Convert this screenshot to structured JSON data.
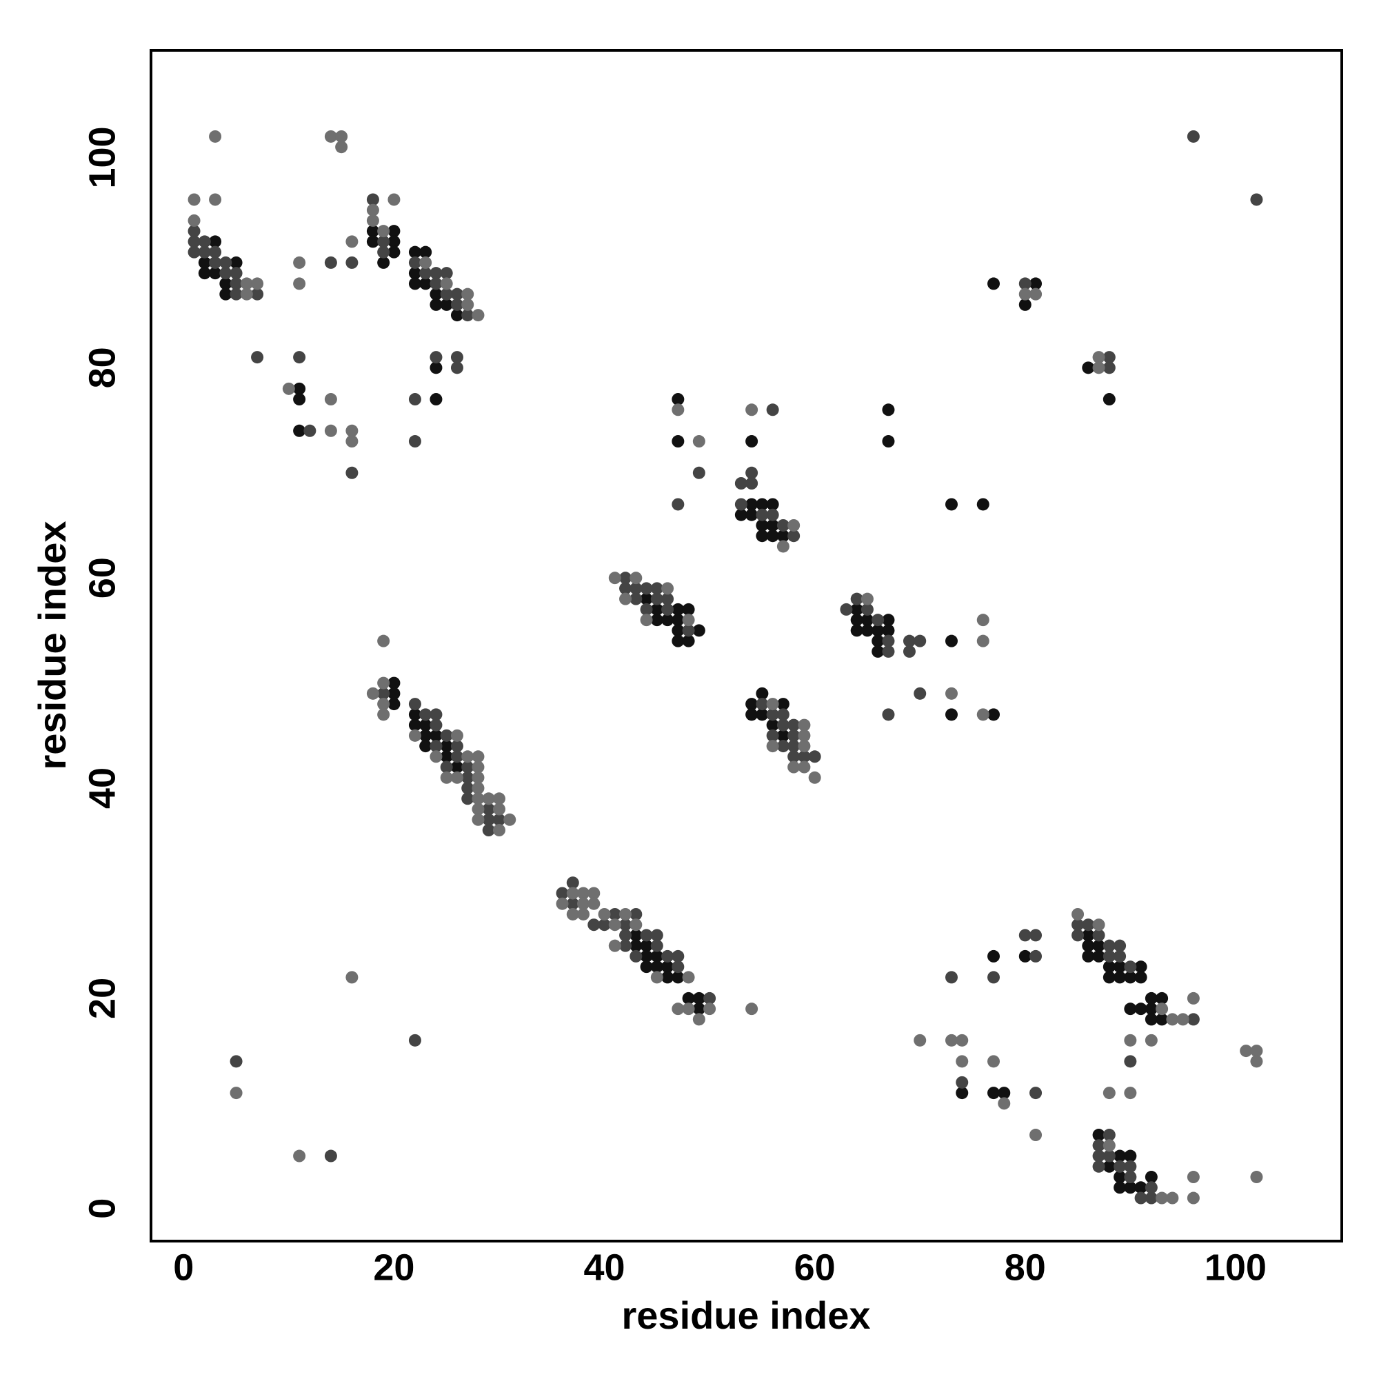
{
  "chart_data": {
    "type": "scatter",
    "xlabel": "residue index",
    "ylabel": "residue index",
    "xlim": [
      -3.1,
      110.1
    ],
    "ylim": [
      -3.1,
      110.2
    ],
    "xticks": [
      0,
      20,
      40,
      60,
      80,
      100
    ],
    "yticks": [
      0,
      20,
      40,
      60,
      80,
      100
    ],
    "grid": false,
    "series": [
      {
        "color": "#111111",
        "x": [
          3,
          2,
          2,
          3,
          5,
          4,
          4,
          18,
          20,
          18,
          20,
          20,
          19,
          22,
          23,
          22,
          22,
          23,
          24,
          24,
          25,
          26,
          24,
          11,
          11,
          11,
          24,
          44,
          45,
          47,
          48,
          45,
          46,
          47,
          47,
          49,
          47,
          48,
          47,
          47,
          54,
          54,
          55,
          56,
          53,
          54,
          55,
          56,
          55,
          56,
          57,
          67,
          67,
          73,
          76,
          64,
          64,
          65,
          67,
          64,
          65,
          66,
          67,
          66,
          66,
          73,
          73,
          77,
          55,
          54,
          57,
          54,
          55,
          56,
          57,
          20,
          20,
          20,
          22,
          22,
          23,
          23,
          24,
          23,
          25,
          25,
          26,
          43,
          43,
          44,
          44,
          45,
          44,
          45,
          46,
          46,
          47,
          48,
          49,
          49,
          77,
          81,
          80,
          86,
          88,
          86,
          86,
          87,
          86,
          87,
          88,
          89,
          91,
          88,
          89,
          90,
          91,
          92,
          93,
          90,
          91,
          92,
          92,
          93,
          80,
          77,
          74,
          77,
          78,
          87,
          89,
          90,
          88,
          89,
          92,
          89,
          90,
          91
        ],
        "values": [
          92,
          90,
          89,
          89,
          90,
          88,
          87,
          93,
          93,
          92,
          92,
          91,
          90,
          91,
          91,
          89,
          88,
          88,
          87,
          86,
          86,
          85,
          80,
          78,
          77,
          74,
          77,
          58,
          57,
          57,
          57,
          56,
          56,
          56,
          55,
          55,
          54,
          54,
          77,
          73,
          73,
          67,
          67,
          67,
          66,
          66,
          65,
          65,
          64,
          64,
          64,
          76,
          73,
          67,
          67,
          57,
          56,
          56,
          56,
          55,
          55,
          55,
          55,
          54,
          53,
          54,
          47,
          47,
          49,
          48,
          48,
          47,
          47,
          46,
          45,
          50,
          49,
          48,
          47,
          46,
          46,
          45,
          45,
          44,
          44,
          43,
          42,
          26,
          25,
          25,
          24,
          24,
          23,
          23,
          23,
          22,
          22,
          20,
          20,
          19,
          88,
          88,
          86,
          80,
          77,
          26,
          25,
          25,
          24,
          24,
          23,
          23,
          23,
          22,
          22,
          22,
          22,
          20,
          20,
          19,
          19,
          19,
          18,
          18,
          24,
          24,
          11,
          11,
          11,
          7,
          5,
          5,
          4,
          3,
          3,
          2,
          2,
          2
        ]
      },
      {
        "color": "#444444",
        "x": [
          1,
          1,
          1,
          2,
          2,
          3,
          3,
          4,
          4,
          5,
          5,
          5,
          7,
          7,
          18,
          19,
          19,
          22,
          23,
          24,
          25,
          24,
          25,
          26,
          26,
          27,
          14,
          16,
          24,
          26,
          26,
          11,
          12,
          16,
          22,
          22,
          42,
          42,
          43,
          44,
          45,
          43,
          45,
          46,
          44,
          46,
          48,
          49,
          47,
          56,
          53,
          54,
          54,
          53,
          55,
          56,
          57,
          58,
          63,
          64,
          65,
          66,
          67,
          67,
          69,
          70,
          69,
          67,
          70,
          55,
          56,
          57,
          57,
          58,
          56,
          58,
          57,
          58,
          58,
          59,
          60,
          19,
          22,
          23,
          24,
          24,
          25,
          24,
          26,
          26,
          25,
          27,
          27,
          27,
          27,
          29,
          29,
          30,
          29,
          37,
          36,
          37,
          39,
          40,
          41,
          43,
          42,
          42,
          44,
          45,
          42,
          45,
          43,
          46,
          47,
          47,
          50,
          22,
          5,
          14,
          80,
          88,
          88,
          96,
          102,
          85,
          86,
          85,
          87,
          88,
          89,
          88,
          89,
          90,
          96,
          80,
          81,
          81,
          77,
          73,
          74,
          81,
          90,
          88,
          87,
          87,
          88,
          87,
          89,
          90,
          90,
          92,
          91,
          92
        ],
        "values": [
          93,
          92,
          91,
          92,
          91,
          91,
          90,
          90,
          89,
          89,
          88,
          87,
          87,
          81,
          96,
          92,
          91,
          90,
          89,
          89,
          89,
          88,
          87,
          87,
          86,
          85,
          90,
          90,
          81,
          81,
          80,
          81,
          74,
          70,
          77,
          73,
          60,
          59,
          59,
          59,
          59,
          58,
          58,
          58,
          57,
          57,
          55,
          70,
          67,
          76,
          69,
          70,
          69,
          67,
          66,
          66,
          65,
          64,
          57,
          58,
          57,
          56,
          54,
          53,
          54,
          54,
          53,
          47,
          49,
          48,
          47,
          47,
          46,
          46,
          45,
          45,
          44,
          44,
          43,
          43,
          43,
          49,
          48,
          47,
          47,
          46,
          45,
          44,
          44,
          43,
          42,
          42,
          41,
          40,
          39,
          38,
          37,
          37,
          36,
          31,
          30,
          29,
          27,
          27,
          28,
          28,
          27,
          26,
          26,
          26,
          25,
          25,
          24,
          24,
          24,
          23,
          20,
          16,
          14,
          5,
          88,
          81,
          80,
          102,
          96,
          27,
          27,
          26,
          26,
          25,
          25,
          24,
          24,
          23,
          18,
          26,
          26,
          24,
          22,
          22,
          12,
          11,
          14,
          7,
          6,
          5,
          5,
          4,
          4,
          4,
          3,
          2,
          1,
          1
        ]
      },
      {
        "color": "#6f6f6f",
        "x": [
          1,
          3,
          1,
          6,
          6,
          7,
          3,
          20,
          18,
          18,
          19,
          23,
          25,
          27,
          27,
          28,
          11,
          11,
          16,
          14,
          15,
          15,
          10,
          14,
          14,
          16,
          16,
          41,
          43,
          46,
          42,
          44,
          48,
          47,
          49,
          54,
          58,
          57,
          65,
          76,
          76,
          73,
          76,
          56,
          59,
          59,
          56,
          59,
          58,
          59,
          60,
          19,
          18,
          19,
          19,
          19,
          22,
          26,
          24,
          27,
          28,
          28,
          25,
          26,
          28,
          28,
          28,
          29,
          30,
          28,
          30,
          28,
          31,
          30,
          37,
          38,
          39,
          36,
          38,
          39,
          37,
          38,
          40,
          42,
          41,
          43,
          41,
          45,
          48,
          47,
          48,
          50,
          49,
          54,
          16,
          5,
          11,
          80,
          81,
          87,
          87,
          85,
          87,
          93,
          94,
          95,
          96,
          70,
          73,
          74,
          74,
          77,
          78,
          81,
          90,
          92,
          88,
          90,
          101,
          102,
          102,
          102,
          88,
          93,
          94,
          96,
          96
        ],
        "values": [
          96,
          96,
          94,
          88,
          87,
          88,
          102,
          96,
          95,
          94,
          93,
          90,
          88,
          87,
          86,
          85,
          90,
          88,
          92,
          102,
          102,
          101,
          78,
          77,
          74,
          74,
          73,
          60,
          60,
          59,
          58,
          56,
          56,
          76,
          73,
          76,
          65,
          63,
          58,
          56,
          54,
          49,
          47,
          48,
          46,
          45,
          44,
          44,
          42,
          42,
          41,
          54,
          49,
          50,
          48,
          47,
          45,
          45,
          43,
          43,
          43,
          42,
          41,
          41,
          41,
          40,
          39,
          39,
          39,
          38,
          38,
          37,
          37,
          36,
          30,
          30,
          30,
          29,
          29,
          29,
          28,
          28,
          28,
          28,
          27,
          27,
          25,
          22,
          22,
          19,
          19,
          19,
          18,
          19,
          22,
          11,
          5,
          87,
          87,
          81,
          80,
          28,
          27,
          19,
          18,
          18,
          20,
          16,
          16,
          16,
          14,
          14,
          10,
          7,
          16,
          16,
          11,
          11,
          15,
          15,
          14,
          3,
          6,
          1,
          1,
          3,
          1
        ]
      }
    ]
  }
}
